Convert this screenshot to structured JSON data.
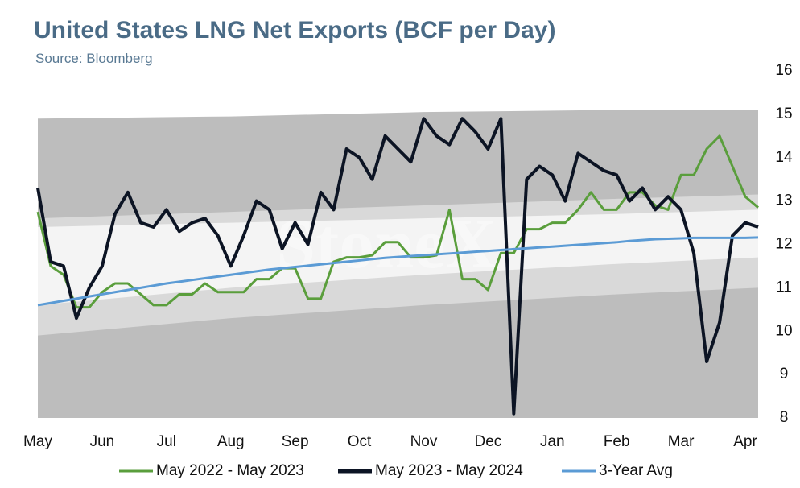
{
  "chart_data": {
    "type": "line",
    "title": "United States LNG Net Exports (BCF per Day)",
    "subtitle": "Source: Bloomberg",
    "watermark": "StoneX",
    "x": [
      0,
      0.2,
      0.4,
      0.6,
      0.8,
      1,
      1.2,
      1.4,
      1.6,
      1.8,
      2,
      2.2,
      2.4,
      2.6,
      2.8,
      3,
      3.2,
      3.4,
      3.6,
      3.8,
      4,
      4.2,
      4.4,
      4.6,
      4.8,
      5,
      5.2,
      5.4,
      5.6,
      5.8,
      6,
      6.2,
      6.4,
      6.6,
      6.8,
      7,
      7.2,
      7.4,
      7.6,
      7.8,
      8,
      8.2,
      8.4,
      8.6,
      8.8,
      9,
      9.2,
      9.4,
      9.6,
      9.8,
      10,
      10.2,
      10.4,
      10.6,
      10.8,
      11,
      11.2
    ],
    "xlim": [
      0,
      11.2
    ],
    "xticks": [
      {
        "value": 0,
        "label": "May"
      },
      {
        "value": 1,
        "label": "Jun"
      },
      {
        "value": 2,
        "label": "Jul"
      },
      {
        "value": 3,
        "label": "Aug"
      },
      {
        "value": 4,
        "label": "Sep"
      },
      {
        "value": 5,
        "label": "Oct"
      },
      {
        "value": 6,
        "label": "Nov"
      },
      {
        "value": 7,
        "label": "Dec"
      },
      {
        "value": 8,
        "label": "Jan"
      },
      {
        "value": 9,
        "label": "Feb"
      },
      {
        "value": 10,
        "label": "Mar"
      },
      {
        "value": 11,
        "label": "Apr"
      }
    ],
    "ylim": [
      8,
      16
    ],
    "yticks": [
      8,
      9,
      10,
      11,
      12,
      13,
      14,
      15,
      16
    ],
    "y_axis_side": "right",
    "grid": false,
    "legend": "bottom",
    "bands": [
      {
        "x": [
          0,
          3,
          6,
          9,
          11.2
        ],
        "lower": [
          8,
          8,
          8,
          8,
          8
        ],
        "upper": [
          14.9,
          14.95,
          15.05,
          15.1,
          15.1
        ],
        "color": "#bdbdbd"
      },
      {
        "x": [
          0,
          3,
          6,
          9,
          11.2
        ],
        "lower": [
          9.9,
          10.3,
          10.6,
          10.85,
          11.0
        ],
        "upper": [
          12.6,
          12.75,
          12.9,
          13.05,
          13.15
        ],
        "color": "#d9d9d9"
      },
      {
        "x": [
          0,
          3,
          6,
          9,
          11.2
        ],
        "lower": [
          10.6,
          11.0,
          11.3,
          11.55,
          11.7
        ],
        "upper": [
          12.4,
          12.5,
          12.6,
          12.7,
          12.8
        ],
        "color": "#f4f4f4"
      }
    ],
    "series": [
      {
        "name": "May 2022 - May 2023",
        "color": "#5a9e3c",
        "values": [
          12.75,
          11.5,
          11.3,
          10.55,
          10.55,
          10.9,
          11.1,
          11.1,
          10.85,
          10.6,
          10.6,
          10.85,
          10.85,
          11.1,
          10.9,
          10.9,
          10.9,
          11.2,
          11.2,
          11.45,
          11.45,
          10.75,
          10.75,
          11.6,
          11.7,
          11.7,
          11.75,
          12.05,
          12.05,
          11.7,
          11.7,
          11.75,
          12.8,
          11.2,
          11.2,
          10.95,
          11.8,
          11.8,
          12.35,
          12.35,
          12.5,
          12.5,
          12.8,
          13.2,
          12.8,
          12.8,
          13.2,
          13.2,
          12.9,
          12.8,
          13.6,
          13.6,
          14.2,
          14.5,
          13.8,
          13.1,
          12.85
        ]
      },
      {
        "name": "May 2023 - May 2024",
        "color": "#0c1424",
        "values": [
          13.3,
          11.6,
          11.5,
          10.3,
          11.0,
          11.5,
          12.7,
          13.2,
          12.5,
          12.4,
          12.8,
          12.3,
          12.5,
          12.6,
          12.2,
          11.5,
          12.2,
          13.0,
          12.8,
          11.9,
          12.5,
          12.0,
          13.2,
          12.8,
          14.2,
          14.0,
          13.5,
          14.5,
          14.2,
          13.9,
          14.9,
          14.5,
          14.3,
          14.9,
          14.6,
          14.2,
          14.9,
          8.1,
          13.5,
          13.8,
          13.6,
          13.0,
          14.1,
          13.9,
          13.7,
          13.6,
          13.0,
          13.3,
          12.8,
          13.1,
          12.8,
          11.8,
          9.3,
          10.2,
          12.2,
          12.5,
          12.4
        ]
      },
      {
        "name": "3-Year Avg",
        "color": "#5b9bd5",
        "values": [
          10.6,
          10.65,
          10.7,
          10.75,
          10.8,
          10.85,
          10.9,
          10.95,
          11.0,
          11.05,
          11.1,
          11.14,
          11.18,
          11.22,
          11.26,
          11.3,
          11.34,
          11.38,
          11.42,
          11.45,
          11.48,
          11.51,
          11.54,
          11.57,
          11.6,
          11.63,
          11.66,
          11.69,
          11.71,
          11.73,
          11.75,
          11.77,
          11.79,
          11.81,
          11.83,
          11.85,
          11.87,
          11.89,
          11.91,
          11.93,
          11.95,
          11.97,
          11.99,
          12.01,
          12.03,
          12.05,
          12.08,
          12.1,
          12.12,
          12.13,
          12.14,
          12.15,
          12.15,
          12.15,
          12.15,
          12.15,
          12.16
        ]
      }
    ]
  }
}
